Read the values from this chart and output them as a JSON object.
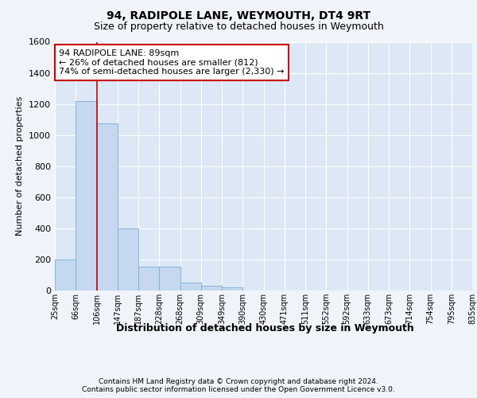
{
  "title1": "94, RADIPOLE LANE, WEYMOUTH, DT4 9RT",
  "title2": "Size of property relative to detached houses in Weymouth",
  "xlabel": "Distribution of detached houses by size in Weymouth",
  "ylabel": "Number of detached properties",
  "footnote1": "Contains HM Land Registry data © Crown copyright and database right 2024.",
  "footnote2": "Contains public sector information licensed under the Open Government Licence v3.0.",
  "annotation_line1": "94 RADIPOLE LANE: 89sqm",
  "annotation_line2": "← 26% of detached houses are smaller (812)",
  "annotation_line3": "74% of semi-detached houses are larger (2,330) →",
  "bin_labels": [
    "25sqm",
    "66sqm",
    "106sqm",
    "147sqm",
    "187sqm",
    "228sqm",
    "268sqm",
    "309sqm",
    "349sqm",
    "390sqm",
    "430sqm",
    "471sqm",
    "511sqm",
    "552sqm",
    "592sqm",
    "633sqm",
    "673sqm",
    "714sqm",
    "754sqm",
    "795sqm",
    "835sqm"
  ],
  "bar_values": [
    200,
    1220,
    1075,
    400,
    155,
    155,
    50,
    30,
    20,
    0,
    0,
    0,
    0,
    0,
    0,
    0,
    0,
    0,
    0,
    0
  ],
  "bar_color": "#c5d8f0",
  "bar_edge_color": "#7aadd4",
  "red_line_x": 2.0,
  "ylim": [
    0,
    1600
  ],
  "yticks": [
    0,
    200,
    400,
    600,
    800,
    1000,
    1200,
    1400,
    1600
  ],
  "background_color": "#dce8f5",
  "grid_color": "#ffffff",
  "fig_bg": "#f0f4fa"
}
